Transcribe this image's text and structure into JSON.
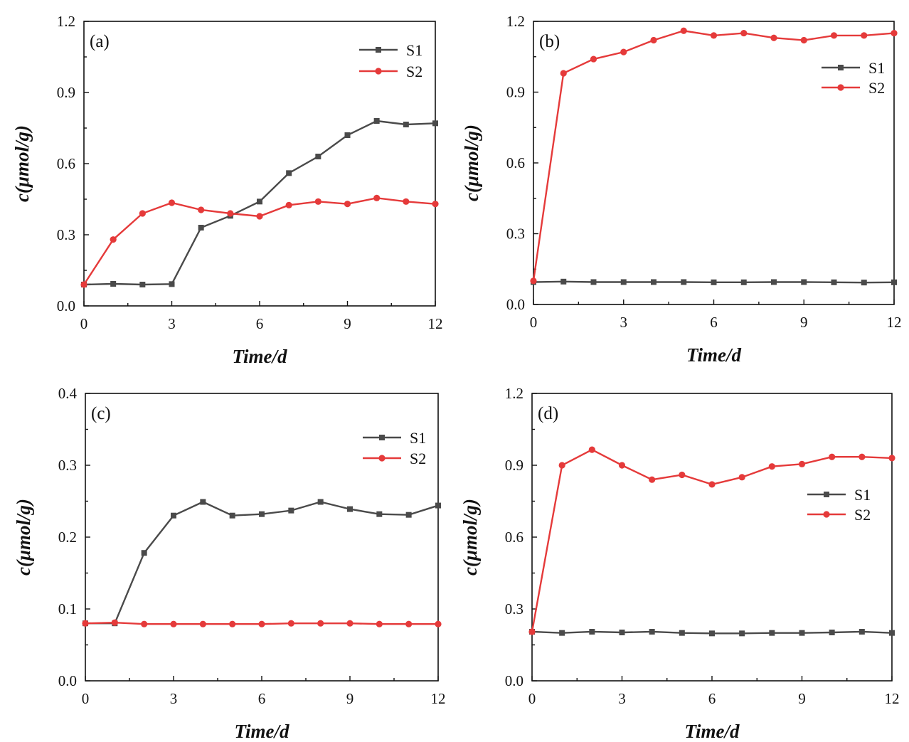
{
  "colors": {
    "S1": "#4a4a4a",
    "S2": "#e53a3a"
  },
  "chart_data": [
    {
      "type": "line",
      "panel_label": "(a)",
      "xlabel": "Time/d",
      "ylabel": "c(μmol/g)",
      "xlim": [
        0,
        12
      ],
      "ylim": [
        0,
        1.2
      ],
      "xticks": [
        0,
        3,
        6,
        9,
        12
      ],
      "xtick_labels": [
        "0",
        "3",
        "6",
        "9",
        "12"
      ],
      "yticks": [
        0,
        0.3,
        0.6,
        0.9,
        1.2
      ],
      "ytick_labels": [
        "0.0",
        "0.3",
        "0.6",
        "0.9",
        "1.2"
      ],
      "legend": "top-right",
      "x": [
        0,
        1,
        2,
        3,
        4,
        5,
        6,
        7,
        8,
        9,
        10,
        11,
        12
      ],
      "series": [
        {
          "name": "S1",
          "values": [
            0.09,
            0.093,
            0.09,
            0.092,
            0.33,
            0.38,
            0.44,
            0.56,
            0.63,
            0.72,
            0.78,
            0.765,
            0.77
          ]
        },
        {
          "name": "S2",
          "values": [
            0.09,
            0.28,
            0.39,
            0.435,
            0.405,
            0.39,
            0.378,
            0.425,
            0.44,
            0.43,
            0.455,
            0.44,
            0.43
          ]
        }
      ]
    },
    {
      "type": "line",
      "panel_label": "(b)",
      "xlabel": "Time/d",
      "ylabel": "c(μmol/g)",
      "xlim": [
        0,
        12
      ],
      "ylim": [
        0,
        1.2
      ],
      "xticks": [
        0,
        3,
        6,
        9,
        12
      ],
      "xtick_labels": [
        "0",
        "3",
        "6",
        "9",
        "12"
      ],
      "yticks": [
        0,
        0.3,
        0.6,
        0.9,
        1.2
      ],
      "ytick_labels": [
        "0.0",
        "0.3",
        "0.6",
        "0.9",
        "1.2"
      ],
      "legend": "upper-right",
      "x": [
        0,
        1,
        2,
        3,
        4,
        5,
        6,
        7,
        8,
        9,
        10,
        11,
        12
      ],
      "series": [
        {
          "name": "S1",
          "values": [
            0.095,
            0.097,
            0.095,
            0.095,
            0.095,
            0.095,
            0.094,
            0.094,
            0.095,
            0.095,
            0.094,
            0.093,
            0.094
          ]
        },
        {
          "name": "S2",
          "values": [
            0.1,
            0.98,
            1.04,
            1.07,
            1.12,
            1.16,
            1.14,
            1.15,
            1.13,
            1.12,
            1.14,
            1.14,
            1.15
          ]
        }
      ]
    },
    {
      "type": "line",
      "panel_label": "(c)",
      "xlabel": "Time/d",
      "ylabel": "c(μmol/g)",
      "xlim": [
        0,
        12
      ],
      "ylim": [
        0,
        0.4
      ],
      "xticks": [
        0,
        3,
        6,
        9,
        12
      ],
      "xtick_labels": [
        "0",
        "3",
        "6",
        "9",
        "12"
      ],
      "yticks": [
        0,
        0.1,
        0.2,
        0.3,
        0.4
      ],
      "ytick_labels": [
        "0.0",
        "0.1",
        "0.2",
        "0.3",
        "0.4"
      ],
      "legend": "top-right",
      "x": [
        0,
        1,
        2,
        3,
        4,
        5,
        6,
        7,
        8,
        9,
        10,
        11,
        12
      ],
      "series": [
        {
          "name": "S1",
          "values": [
            0.08,
            0.08,
            0.178,
            0.23,
            0.249,
            0.23,
            0.232,
            0.237,
            0.249,
            0.239,
            0.232,
            0.231,
            0.244
          ]
        },
        {
          "name": "S2",
          "values": [
            0.08,
            0.081,
            0.079,
            0.079,
            0.079,
            0.079,
            0.079,
            0.08,
            0.08,
            0.08,
            0.079,
            0.079,
            0.079
          ]
        }
      ]
    },
    {
      "type": "line",
      "panel_label": "(d)",
      "xlabel": "Time/d",
      "ylabel": "c(μmol/g)",
      "xlim": [
        0,
        12
      ],
      "ylim": [
        0,
        1.2
      ],
      "xticks": [
        0,
        3,
        6,
        9,
        12
      ],
      "xtick_labels": [
        "0",
        "3",
        "6",
        "9",
        "12"
      ],
      "yticks": [
        0,
        0.3,
        0.6,
        0.9,
        1.2
      ],
      "ytick_labels": [
        "0.0",
        "0.3",
        "0.6",
        "0.9",
        "1.2"
      ],
      "legend": "right",
      "x": [
        0,
        1,
        2,
        3,
        4,
        5,
        6,
        7,
        8,
        9,
        10,
        11,
        12
      ],
      "series": [
        {
          "name": "S1",
          "values": [
            0.205,
            0.2,
            0.205,
            0.202,
            0.205,
            0.2,
            0.198,
            0.198,
            0.2,
            0.2,
            0.202,
            0.205,
            0.2
          ]
        },
        {
          "name": "S2",
          "values": [
            0.205,
            0.9,
            0.965,
            0.9,
            0.84,
            0.86,
            0.82,
            0.85,
            0.895,
            0.905,
            0.935,
            0.935,
            0.93
          ]
        }
      ]
    }
  ]
}
